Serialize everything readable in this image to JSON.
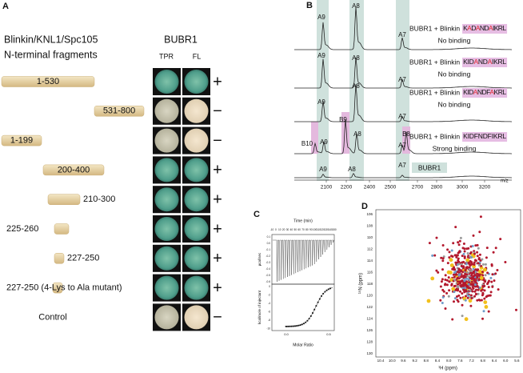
{
  "panel_a": {
    "label": "A",
    "title_lines": [
      "Blinkin/KNL1/Spc105",
      "N-terminal fragments"
    ],
    "assay": "BUBR1",
    "columns": [
      "TPR",
      "FL"
    ],
    "rows": [
      {
        "fragment": "1-530",
        "result": "+"
      },
      {
        "fragment": "531-800",
        "result": "−"
      },
      {
        "fragment": "1-199",
        "result": "−"
      },
      {
        "fragment": "200-400",
        "result": "+"
      },
      {
        "fragment": "210-300",
        "result": "+"
      },
      {
        "fragment": "225-260",
        "result": "+"
      },
      {
        "fragment": "227-250",
        "result": "+"
      },
      {
        "fragment": "227-250 (4-Lys to Ala mutant)",
        "result": "+"
      },
      {
        "fragment": "Control",
        "result": "−"
      }
    ]
  },
  "panel_b": {
    "label": "B",
    "complex": "BUBR1 + Blinkin",
    "traces": [
      {
        "sequence": "KADANDAIKRL",
        "binding": "No binding",
        "peaks": [
          "A9",
          "A8",
          "A7"
        ]
      },
      {
        "sequence": "KIDANDAIKRL",
        "binding": "No binding",
        "peaks": [
          "A9",
          "A8",
          "A7"
        ]
      },
      {
        "sequence": "KIDANDFAKRL",
        "binding": "No binding",
        "peaks": [
          "A9",
          "A8",
          "A7"
        ]
      },
      {
        "sequence": "KIDFNDFIKRL",
        "binding": "Strong binding",
        "peaks": [
          "B10",
          "A9",
          "B9",
          "A8",
          "B8",
          "A7"
        ]
      }
    ],
    "reference": {
      "label": "BUBR1",
      "peaks": [
        "A9",
        "A8",
        "A7"
      ]
    },
    "x_ticks": [
      "2100",
      "2200",
      "2400",
      "2500",
      "2700",
      "2800",
      "3000",
      "3200"
    ],
    "x_label": "m/z"
  },
  "panel_c": {
    "label": "C",
    "top_x_label": "Time (min)",
    "top_x_ticks": [
      "-10",
      "0",
      "10",
      "20",
      "30",
      "40",
      "50",
      "60",
      "70",
      "80",
      "90",
      "100",
      "110",
      "120",
      "130",
      "140",
      "150"
    ],
    "top_y_label": "µcal/sec",
    "top_y_ticks": [
      "0.1",
      "0.0",
      "-0.1",
      "-0.2",
      "-0.3",
      "-0.4",
      "-0.5",
      "-0.6"
    ],
    "bottom_y_label": "kcal/mole of injectant",
    "bottom_y_ticks": [
      "0",
      "-2",
      "-4",
      "-6",
      "-8",
      "-10"
    ],
    "bottom_x_label": "Molar Ratio",
    "bottom_x_ticks": [
      "0.0",
      "0.5"
    ]
  },
  "panel_d": {
    "label": "D",
    "y_label": "¹⁵N (ppm)",
    "x_label": "¹H (ppm)",
    "y_ticks": [
      "106",
      "108",
      "110",
      "112",
      "114",
      "116",
      "118",
      "120",
      "122",
      "124",
      "126",
      "128",
      "130"
    ],
    "x_ticks": [
      "10.4",
      "10.0",
      "9.6",
      "9.2",
      "8.8",
      "8.4",
      "8.0",
      "7.6",
      "7.2",
      "6.8",
      "6.4",
      "6.0",
      "5.6"
    ]
  }
}
